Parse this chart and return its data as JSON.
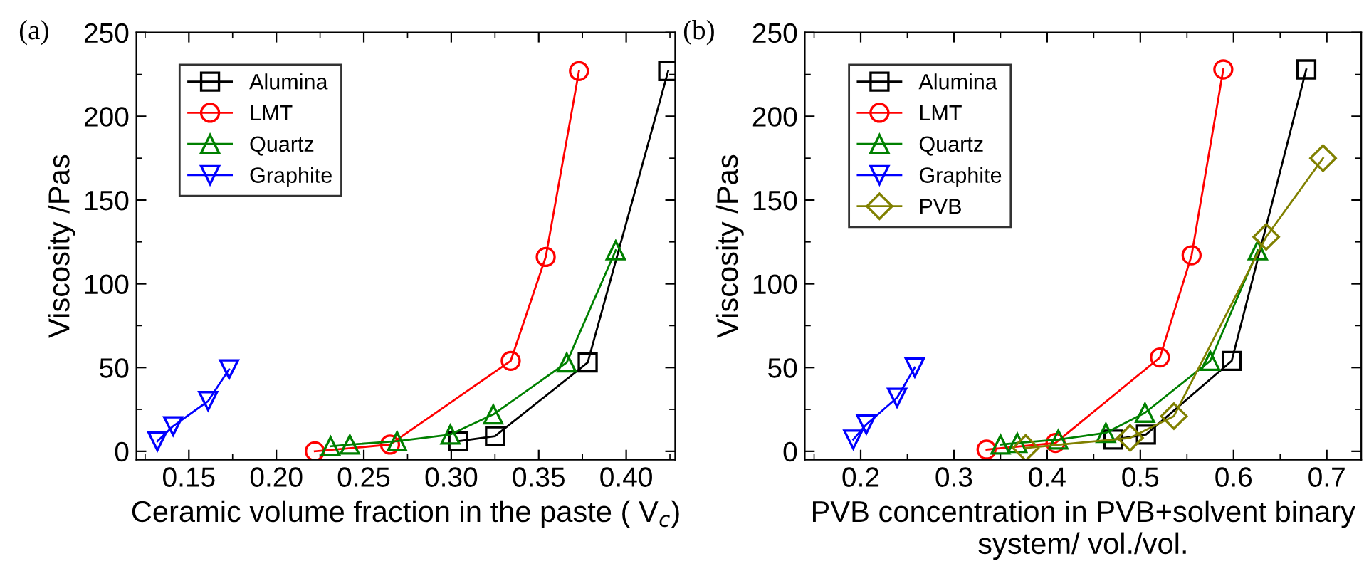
{
  "chart_data": [
    {
      "type": "line",
      "annotations": [
        "(a)"
      ],
      "xlabel": "Ceramic volume fraction in the paste ( V$_{c}$)",
      "ylabel": "Viscosity /Pas",
      "xlim": [
        0.12,
        0.428
      ],
      "xticks": [
        {
          "value": 0.15,
          "label": "0.15"
        },
        {
          "value": 0.2,
          "label": "0.20"
        },
        {
          "value": 0.25,
          "label": "0.25"
        },
        {
          "value": 0.3,
          "label": "0.30"
        },
        {
          "value": 0.35,
          "label": "0.35"
        },
        {
          "value": 0.4,
          "label": "0.40"
        }
      ],
      "ylim": [
        -5,
        250
      ],
      "yticks": [
        0,
        50,
        100,
        150,
        200,
        250
      ],
      "legend": "top left",
      "grid": false,
      "series": [
        {
          "name": "Alumina",
          "color": "#000000",
          "marker": "square",
          "x": [
            0.304,
            0.325,
            0.378,
            0.424
          ],
          "values": [
            6,
            9,
            53,
            227
          ]
        },
        {
          "name": "LMT",
          "color": "#ff0000",
          "marker": "circle",
          "x": [
            0.222,
            0.265,
            0.334,
            0.354,
            0.373
          ],
          "values": [
            0,
            4,
            54,
            116,
            227
          ]
        },
        {
          "name": "Quartz",
          "color": "#008000",
          "marker": "triangle",
          "x": [
            0.231,
            0.242,
            0.269,
            0.2995,
            0.324,
            0.366,
            0.394
          ],
          "values": [
            3,
            4,
            6,
            10,
            22,
            53,
            120
          ]
        },
        {
          "name": "Graphite",
          "color": "#0000ff",
          "marker": "triangle_down",
          "x": [
            0.132,
            0.141,
            0.161,
            0.173
          ],
          "values": [
            6,
            15,
            30,
            49
          ]
        }
      ]
    },
    {
      "type": "line",
      "annotations": [
        "(b)"
      ],
      "xlabel": "PVB concentration in PVB+solvent binary\nsystem/ vol./vol.",
      "ylabel": "Viscosity /Pas",
      "xlim": [
        0.14,
        0.737
      ],
      "xticks": [
        0.2,
        0.3,
        0.4,
        0.5,
        0.6,
        0.7
      ],
      "ylim": [
        -5,
        250
      ],
      "yticks": [
        0,
        50,
        100,
        150,
        200,
        250
      ],
      "legend": "top left",
      "grid": false,
      "series": [
        {
          "name": "Alumina",
          "color": "#000000",
          "marker": "square",
          "x": [
            0.471,
            0.506,
            0.598,
            0.678
          ],
          "values": [
            7,
            10,
            54,
            228
          ]
        },
        {
          "name": "LMT",
          "color": "#ff0000",
          "marker": "circle",
          "x": [
            0.335,
            0.409,
            0.521,
            0.555,
            0.589
          ],
          "values": [
            1,
            5,
            56,
            117,
            228
          ]
        },
        {
          "name": "Quartz",
          "color": "#008000",
          "marker": "triangle",
          "x": [
            0.35,
            0.368,
            0.412,
            0.463,
            0.505,
            0.575,
            0.626
          ],
          "values": [
            4,
            5,
            7,
            11,
            23,
            54,
            120
          ]
        },
        {
          "name": "Graphite",
          "color": "#0000ff",
          "marker": "triangle_down",
          "x": [
            0.192,
            0.206,
            0.239,
            0.258
          ],
          "values": [
            7,
            16,
            32,
            50
          ]
        },
        {
          "name": "PVB",
          "color": "#808000",
          "marker": "diamond",
          "x": [
            0.377,
            0.489,
            0.536,
            0.635,
            0.696
          ],
          "values": [
            2,
            8,
            21,
            128,
            175
          ]
        }
      ]
    }
  ]
}
